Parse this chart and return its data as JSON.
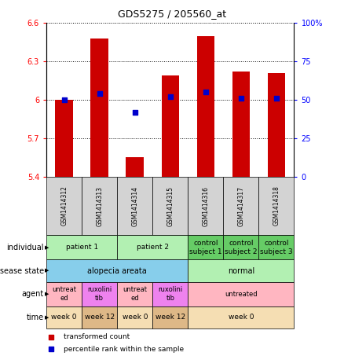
{
  "title": "GDS5275 / 205560_at",
  "samples": [
    "GSM1414312",
    "GSM1414313",
    "GSM1414314",
    "GSM1414315",
    "GSM1414316",
    "GSM1414317",
    "GSM1414318"
  ],
  "transformed_count": [
    6.0,
    6.48,
    5.55,
    6.19,
    6.5,
    6.22,
    6.21
  ],
  "percentile_rank": [
    50,
    54,
    42,
    52,
    55,
    51,
    51
  ],
  "ylim": [
    5.4,
    6.6
  ],
  "ylim_right": [
    0,
    100
  ],
  "yticks_left": [
    5.4,
    5.7,
    6.0,
    6.3,
    6.6
  ],
  "yticks_right": [
    0,
    25,
    50,
    75,
    100
  ],
  "ytick_labels_left": [
    "5.4",
    "5.7",
    "6",
    "6.3",
    "6.6"
  ],
  "ytick_labels_right": [
    "0",
    "25",
    "50",
    "75",
    "100%"
  ],
  "bar_color": "#cc0000",
  "dot_color": "#0000cc",
  "bar_width": 0.5,
  "individual_data": [
    [
      0,
      2,
      "patient 1",
      "#b2f0b2"
    ],
    [
      2,
      4,
      "patient 2",
      "#b2f0b2"
    ],
    [
      4,
      5,
      "control\nsubject 1",
      "#66cc66"
    ],
    [
      5,
      6,
      "control\nsubject 2",
      "#66cc66"
    ],
    [
      6,
      7,
      "control\nsubject 3",
      "#66cc66"
    ]
  ],
  "disease_data": [
    [
      0,
      4,
      "alopecia areata",
      "#87ceeb"
    ],
    [
      4,
      7,
      "normal",
      "#b2f0b2"
    ]
  ],
  "agent_data": [
    [
      0,
      1,
      "untreat\ned",
      "#ffb6c1"
    ],
    [
      1,
      2,
      "ruxolini\ntib",
      "#ee82ee"
    ],
    [
      2,
      3,
      "untreat\ned",
      "#ffb6c1"
    ],
    [
      3,
      4,
      "ruxolini\ntib",
      "#ee82ee"
    ],
    [
      4,
      7,
      "untreated",
      "#ffb6c1"
    ]
  ],
  "time_data": [
    [
      0,
      1,
      "week 0",
      "#f5deb3"
    ],
    [
      1,
      2,
      "week 12",
      "#deb887"
    ],
    [
      2,
      3,
      "week 0",
      "#f5deb3"
    ],
    [
      3,
      4,
      "week 12",
      "#deb887"
    ],
    [
      4,
      7,
      "week 0",
      "#f5deb3"
    ]
  ],
  "sample_bg": "#d3d3d3",
  "row_labels": [
    "individual",
    "disease state",
    "agent",
    "time"
  ],
  "legend_items": [
    "transformed count",
    "percentile rank within the sample"
  ],
  "legend_colors": [
    "#cc0000",
    "#0000cc"
  ]
}
